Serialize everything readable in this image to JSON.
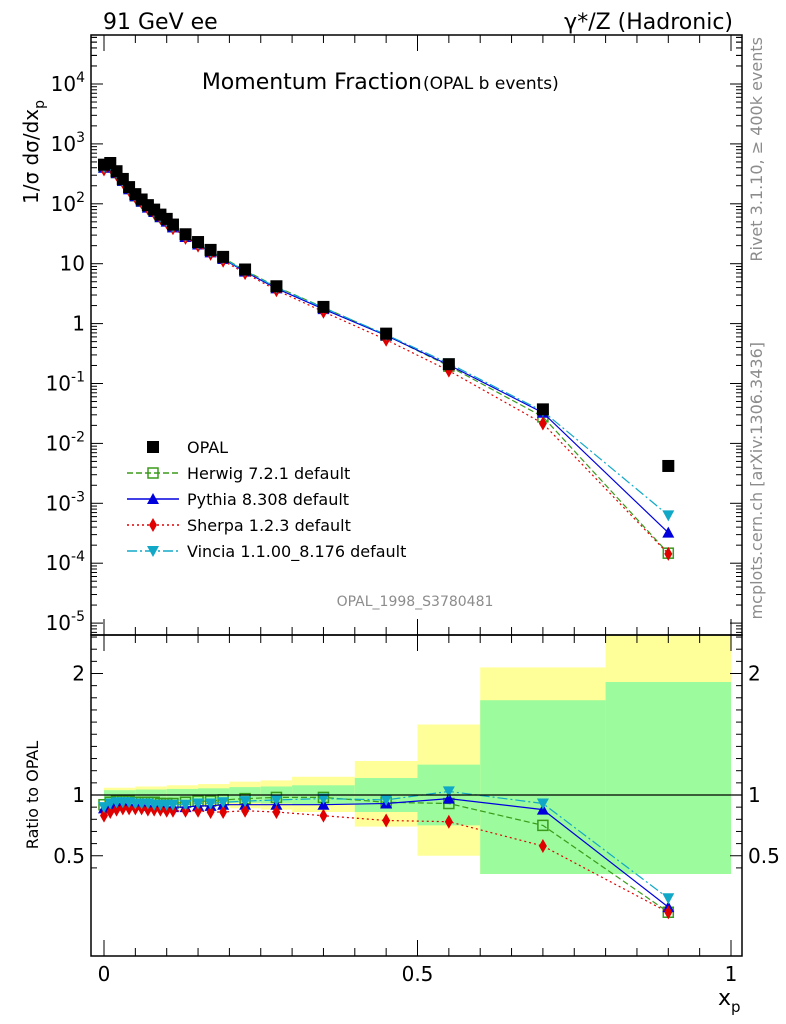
{
  "header": {
    "left_title": "91 GeV ee",
    "right_title": "γ*/Z (Hadronic)"
  },
  "plot": {
    "title_main": "Momentum Fraction",
    "title_sub": "(OPAL b events)",
    "analysis_id": "OPAL_1998_S3780481",
    "side_rivet": "Rivet 3.1.10, ≥ 400k events",
    "side_mcplots": "mcplots.cern.ch [arXiv:1306.3436]",
    "y_label": "1/σ dσ/dx",
    "y_label_sub": "p",
    "ratio_label": "Ratio to OPAL",
    "x_label": "x",
    "x_label_sub": "p"
  },
  "legend": [
    {
      "name": "OPAL",
      "color": "#000000"
    },
    {
      "name": "Herwig 7.2.1 default",
      "color": "#3a9a1a"
    },
    {
      "name": "Pythia 8.308 default",
      "color": "#0000dd"
    },
    {
      "name": "Sherpa 1.2.3 default",
      "color": "#e00000"
    },
    {
      "name": "Vincia 1.1.00_8.176 default",
      "color": "#11a8c8"
    }
  ],
  "chart_data": {
    "type": "scatter",
    "x_range": [
      0,
      1
    ],
    "y_scale": "log",
    "y_range": [
      5e-06,
      60000
    ],
    "ratio_range": [
      0.35,
      2.4
    ],
    "x_ticks": [
      "0",
      "0.5",
      "1"
    ],
    "y_ticks": [
      "10^4",
      "10^3",
      "10^2",
      "10",
      "1",
      "10^-1",
      "10^-2",
      "10^-3",
      "10^-4",
      "10^-5"
    ],
    "ratio_ticks": [
      "0.5",
      "1",
      "2"
    ],
    "x": [
      0.0,
      0.01,
      0.02,
      0.03,
      0.04,
      0.05,
      0.06,
      0.07,
      0.08,
      0.09,
      0.1,
      0.11,
      0.13,
      0.15,
      0.17,
      0.19,
      0.225,
      0.275,
      0.35,
      0.45,
      0.55,
      0.7,
      0.9
    ],
    "series": [
      {
        "name": "OPAL",
        "values": [
          450,
          480,
          350,
          260,
          190,
          145,
          118,
          95,
          80,
          66,
          56,
          45,
          31,
          23,
          17,
          13,
          8.0,
          4.2,
          1.9,
          0.68,
          0.21,
          0.037,
          0.0042
        ]
      },
      {
        "name": "Herwig 7.2.1 default",
        "ratio": [
          0.92,
          0.94,
          0.95,
          0.95,
          0.95,
          0.94,
          0.94,
          0.94,
          0.94,
          0.93,
          0.93,
          0.93,
          0.94,
          0.95,
          0.95,
          0.96,
          0.97,
          0.98,
          0.98,
          0.94,
          0.93,
          0.75,
          0.035
        ]
      },
      {
        "name": "Pythia 8.308 default",
        "ratio": [
          0.89,
          0.92,
          0.93,
          0.93,
          0.92,
          0.92,
          0.92,
          0.91,
          0.91,
          0.91,
          0.9,
          0.9,
          0.9,
          0.91,
          0.91,
          0.92,
          0.92,
          0.92,
          0.92,
          0.93,
          0.97,
          0.88,
          0.077
        ]
      },
      {
        "name": "Sherpa 1.2.3 default",
        "ratio": [
          0.83,
          0.86,
          0.88,
          0.89,
          0.89,
          0.89,
          0.89,
          0.88,
          0.88,
          0.88,
          0.87,
          0.87,
          0.87,
          0.87,
          0.86,
          0.86,
          0.87,
          0.86,
          0.83,
          0.79,
          0.78,
          0.58,
          0.034
        ]
      },
      {
        "name": "Vincia 1.1.00_8.176 default",
        "ratio": [
          0.9,
          0.93,
          0.94,
          0.94,
          0.94,
          0.93,
          0.93,
          0.93,
          0.92,
          0.92,
          0.92,
          0.92,
          0.92,
          0.93,
          0.93,
          0.94,
          0.95,
          0.96,
          0.97,
          0.96,
          1.03,
          0.93,
          0.15
        ]
      }
    ],
    "bands": [
      {
        "x": [
          0.0,
          0.05
        ],
        "yellow": [
          0.94,
          1.06
        ],
        "green": [
          0.96,
          1.04
        ]
      },
      {
        "x": [
          0.05,
          0.1
        ],
        "yellow": [
          0.93,
          1.07
        ],
        "green": [
          0.955,
          1.045
        ]
      },
      {
        "x": [
          0.1,
          0.15
        ],
        "yellow": [
          0.92,
          1.08
        ],
        "green": [
          0.95,
          1.05
        ]
      },
      {
        "x": [
          0.15,
          0.2
        ],
        "yellow": [
          0.91,
          1.09
        ],
        "green": [
          0.945,
          1.055
        ]
      },
      {
        "x": [
          0.2,
          0.25
        ],
        "yellow": [
          0.89,
          1.11
        ],
        "green": [
          0.935,
          1.065
        ]
      },
      {
        "x": [
          0.25,
          0.3
        ],
        "yellow": [
          0.88,
          1.12
        ],
        "green": [
          0.93,
          1.07
        ]
      },
      {
        "x": [
          0.3,
          0.4
        ],
        "yellow": [
          0.86,
          1.15
        ],
        "green": [
          0.92,
          1.08
        ]
      },
      {
        "x": [
          0.4,
          0.5
        ],
        "yellow": [
          0.74,
          1.28
        ],
        "green": [
          0.86,
          1.14
        ]
      },
      {
        "x": [
          0.5,
          0.6
        ],
        "yellow": [
          0.5,
          1.58
        ],
        "green": [
          0.75,
          1.25
        ]
      },
      {
        "x": [
          0.6,
          0.8
        ],
        "yellow": [
          0.35,
          2.05
        ],
        "green": [
          0.35,
          1.78
        ]
      },
      {
        "x": [
          0.8,
          1.0
        ],
        "yellow": [
          0.35,
          2.4
        ],
        "green": [
          0.35,
          1.93
        ]
      }
    ]
  }
}
